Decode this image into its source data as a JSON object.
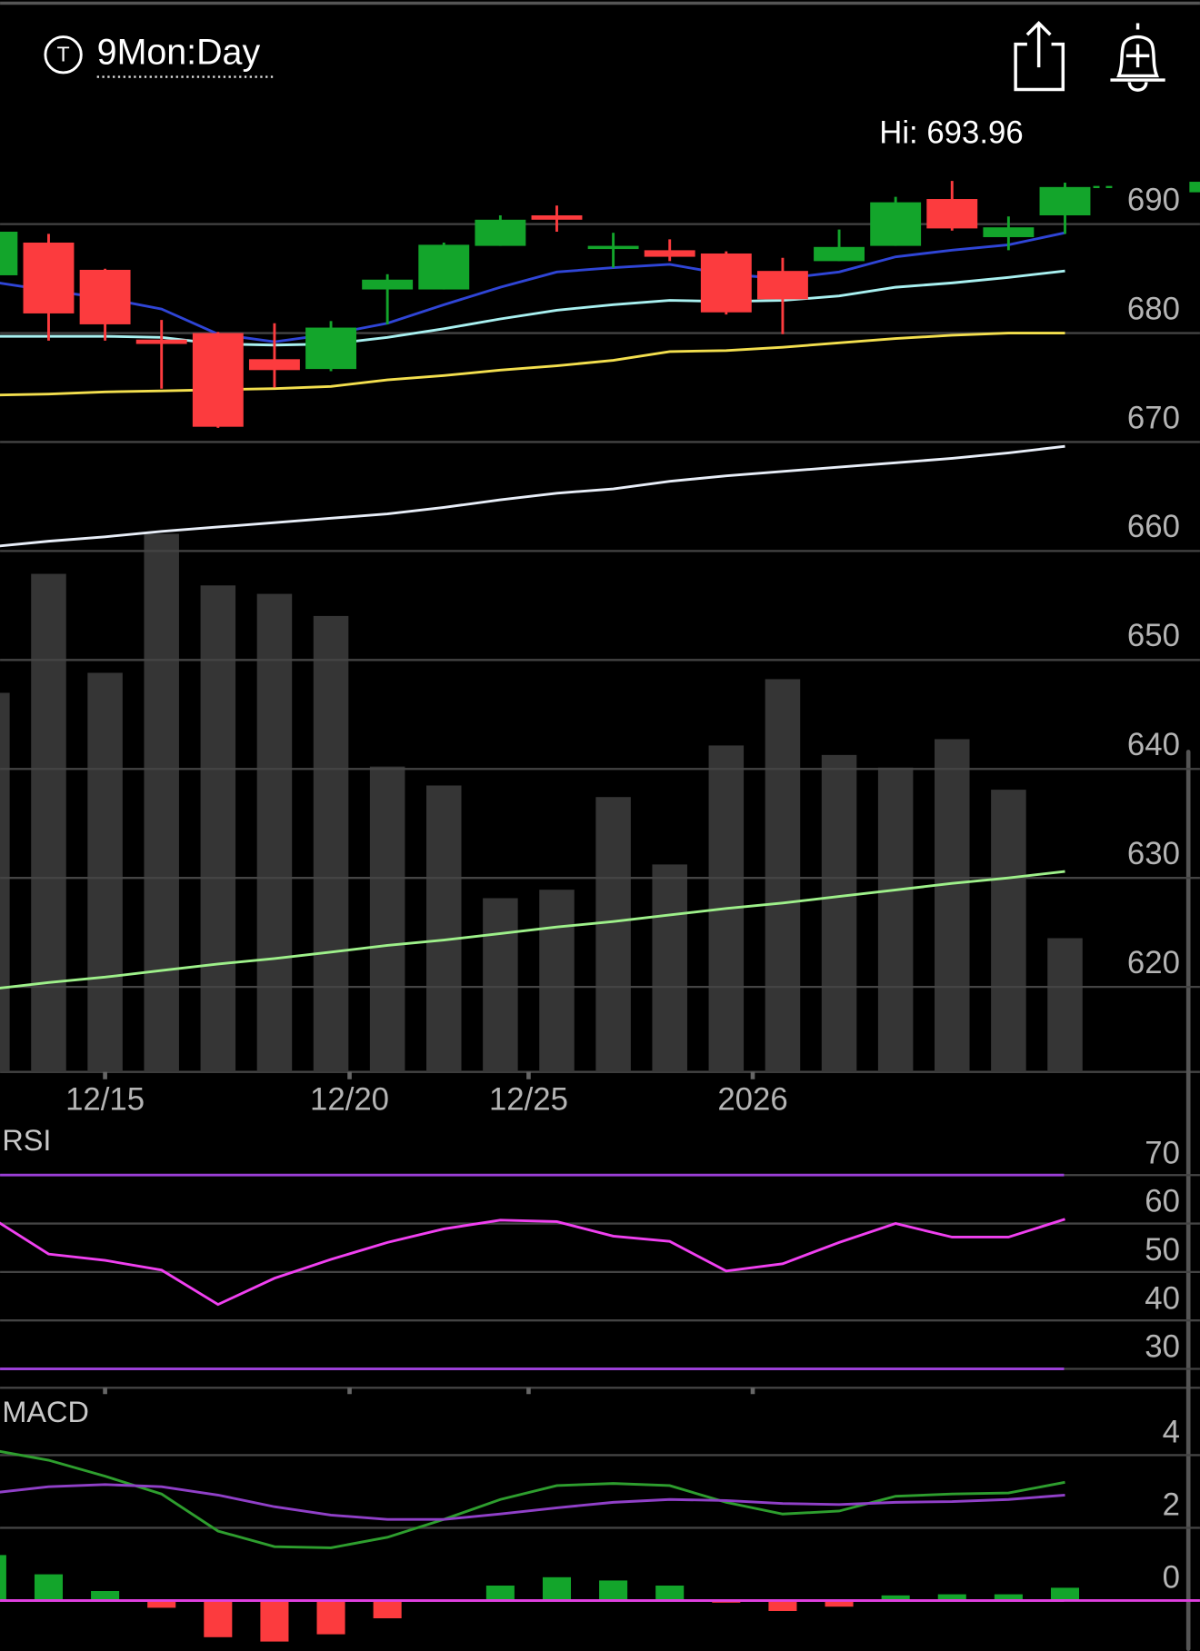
{
  "header": {
    "badge": "T",
    "title": "9Mon:Day"
  },
  "chart_data": [
    {
      "type": "candlestick",
      "categories": [
        null,
        null,
        null,
        null,
        null,
        null,
        null,
        null,
        null,
        null,
        null,
        null,
        null,
        null,
        null,
        null,
        null,
        null,
        null,
        null
      ],
      "xlim": [
        0.14,
        21.39
      ],
      "xticks": [
        {
          "value": 2,
          "label": "12/15"
        },
        {
          "value": 6.33,
          "label": "12/20"
        },
        {
          "value": 9.5,
          "label": "12/25"
        },
        {
          "value": 13.47,
          "label": "2026"
        }
      ],
      "ylim": [
        612.2,
        700.9
      ],
      "yticks": [
        620,
        630,
        640,
        650,
        660,
        670,
        680,
        690
      ],
      "grid": true,
      "annotation": "Hi: 693.96",
      "up_color": "#13a52b",
      "down_color": "#fc3b3e",
      "open": [
        685.3,
        688.3,
        685.8,
        679.4,
        680.0,
        677.6,
        676.7,
        684.0,
        684.0,
        688.0,
        690.8,
        687.8,
        687.6,
        687.3,
        685.7,
        686.6,
        688.0,
        692.3,
        688.8,
        690.8
      ],
      "high": [
        689.5,
        689.1,
        685.9,
        681.2,
        680.1,
        680.9,
        681.1,
        685.4,
        688.3,
        690.8,
        691.7,
        689.2,
        688.6,
        687.5,
        686.9,
        689.5,
        692.5,
        693.96,
        690.7,
        693.8
      ],
      "low": [
        685.0,
        679.3,
        679.3,
        674.9,
        671.3,
        675.0,
        676.5,
        680.8,
        684.0,
        688.0,
        689.3,
        686.0,
        686.6,
        681.7,
        679.9,
        686.6,
        688.0,
        689.4,
        687.6,
        689.1
      ],
      "close": [
        689.3,
        681.8,
        680.8,
        679.0,
        671.4,
        676.6,
        680.5,
        684.9,
        688.1,
        690.4,
        690.4,
        688.0,
        687.0,
        681.9,
        683.1,
        687.9,
        692.0,
        689.6,
        689.7,
        693.4
      ],
      "lines": [
        {
          "color": "#9ef08a",
          "values": [
            619.8,
            620.4,
            620.9,
            621.5,
            622.1,
            622.6,
            623.2,
            623.8,
            624.3,
            624.9,
            625.5,
            626.0,
            626.6,
            627.2,
            627.7,
            628.3,
            628.9,
            629.5,
            630.0,
            630.6
          ]
        },
        {
          "color": "#e8eef8",
          "values": [
            660.4,
            660.9,
            661.3,
            661.8,
            662.2,
            662.6,
            663.0,
            663.4,
            664.0,
            664.7,
            665.3,
            665.7,
            666.4,
            666.9,
            667.3,
            667.7,
            668.1,
            668.5,
            669.0,
            669.6
          ]
        },
        {
          "color": "#f3df4e",
          "values": [
            674.3,
            674.4,
            674.6,
            674.7,
            674.8,
            674.9,
            675.1,
            675.7,
            676.1,
            676.6,
            677.0,
            677.5,
            678.3,
            678.4,
            678.7,
            679.1,
            679.5,
            679.8,
            680.0,
            680.0
          ]
        },
        {
          "color": "#a8f0f0",
          "values": [
            679.7,
            679.7,
            679.7,
            679.6,
            679.0,
            678.9,
            679.0,
            679.6,
            680.4,
            681.3,
            682.1,
            682.6,
            683.0,
            682.9,
            683.0,
            683.4,
            684.2,
            684.6,
            685.1,
            685.7
          ]
        },
        {
          "color": "#2f45d6",
          "values": [
            684.7,
            683.9,
            683.2,
            682.2,
            679.9,
            679.2,
            679.9,
            680.9,
            682.6,
            684.2,
            685.6,
            686.0,
            686.3,
            685.4,
            685.0,
            685.6,
            687.0,
            687.6,
            688.1,
            689.2
          ]
        }
      ],
      "volume": {
        "color": "#353535",
        "ylim": [
          0,
          140
        ],
        "values": [
          72,
          94.6,
          75.8,
          102.2,
          92.4,
          90.8,
          86.6,
          58,
          54.4,
          33,
          34.6,
          52.2,
          39.4,
          62,
          74.6,
          60.2,
          57.8,
          63.2,
          53.6,
          25.4
        ]
      }
    },
    {
      "type": "line",
      "title": "RSI",
      "ylim": [
        26.1,
        80
      ],
      "yticks": [
        30,
        40,
        50,
        60,
        70
      ],
      "grid": true,
      "levels": [
        {
          "value": 70,
          "color": "#9b3fd6"
        },
        {
          "value": 30,
          "color": "#9b3fd6"
        }
      ],
      "series": [
        {
          "color": "#f040f0",
          "values": [
            61.1,
            53.7,
            52.4,
            50.4,
            43.3,
            48.7,
            52.6,
            56.1,
            58.9,
            60.7,
            60.4,
            57.4,
            56.3,
            50.2,
            51.7,
            56.1,
            60.0,
            57.2,
            57.2,
            60.9
          ]
        }
      ]
    },
    {
      "type": "line",
      "title": "MACD",
      "ylim": [
        -1.39,
        5.65
      ],
      "yticks": [
        0,
        2,
        4
      ],
      "grid": true,
      "levels": [
        {
          "value": 0,
          "color": "#e040e0"
        }
      ],
      "series": [
        {
          "color": "#2e9e2e",
          "values": [
            4.14,
            3.86,
            3.42,
            2.93,
            1.91,
            1.48,
            1.45,
            1.74,
            2.23,
            2.78,
            3.16,
            3.22,
            3.16,
            2.7,
            2.38,
            2.46,
            2.87,
            2.93,
            2.96,
            3.25
          ]
        },
        {
          "color": "#9040c8",
          "values": [
            2.96,
            3.13,
            3.19,
            3.13,
            2.9,
            2.58,
            2.35,
            2.23,
            2.23,
            2.38,
            2.55,
            2.7,
            2.78,
            2.75,
            2.67,
            2.64,
            2.7,
            2.72,
            2.78,
            2.9
          ]
        }
      ],
      "histogram": {
        "up_color": "#13a52b",
        "down_color": "#fc3b3e",
        "values": [
          1.25,
          0.72,
          0.26,
          -0.2,
          -1.01,
          -1.13,
          -0.93,
          -0.49,
          0,
          0.41,
          0.64,
          0.55,
          0.41,
          -0.06,
          -0.29,
          -0.17,
          0.14,
          0.17,
          0.17,
          0.35
        ]
      }
    }
  ]
}
